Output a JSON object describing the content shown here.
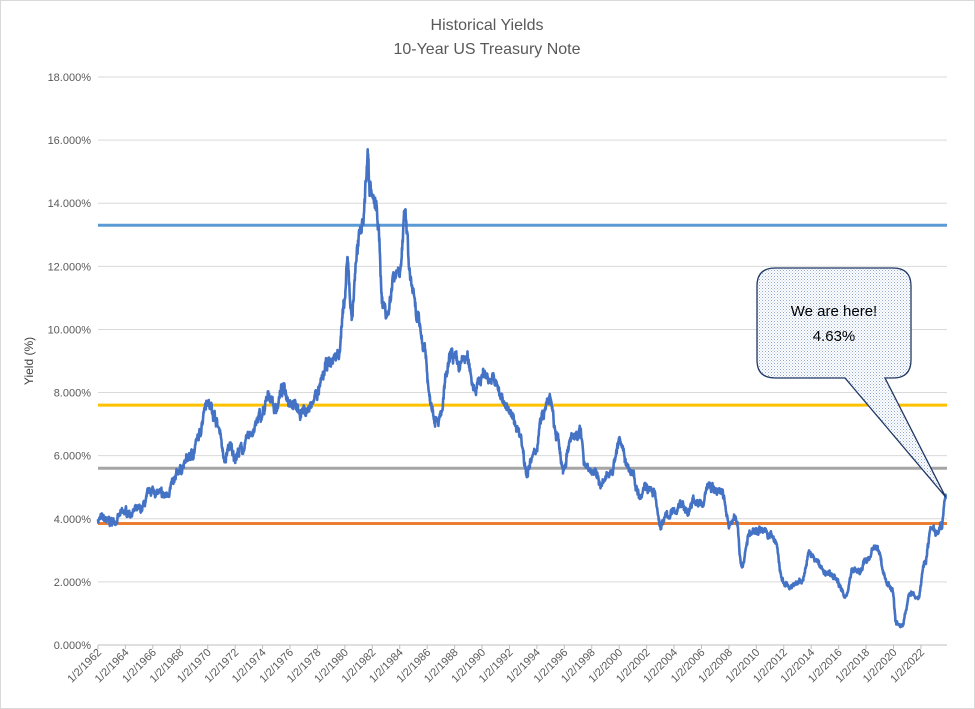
{
  "chart_data": {
    "type": "line",
    "title": "Historical Yields",
    "subtitle": "10-Year US Treasury Note",
    "xlabel": "",
    "ylabel": "Yield (%)",
    "ylim": [
      0,
      18
    ],
    "yticks": [
      "0.000%",
      "2.000%",
      "4.000%",
      "6.000%",
      "8.000%",
      "10.000%",
      "12.000%",
      "14.000%",
      "16.000%",
      "18.000%"
    ],
    "xlim": [
      1962.0,
      2023.9
    ],
    "xticks": [
      "1/2/1962",
      "1/2/1964",
      "1/2/1966",
      "1/2/1968",
      "1/2/1970",
      "1/2/1972",
      "1/2/1974",
      "1/2/1976",
      "1/2/1978",
      "1/2/1980",
      "1/2/1982",
      "1/2/1984",
      "1/2/1986",
      "1/2/1988",
      "1/2/1990",
      "1/2/1992",
      "1/2/1994",
      "1/2/1996",
      "1/2/1998",
      "1/2/2000",
      "1/2/2002",
      "1/2/2004",
      "1/2/2006",
      "1/2/2008",
      "1/2/2010",
      "1/2/2012",
      "1/2/2014",
      "1/2/2016",
      "1/2/2018",
      "1/2/2020",
      "1/2/2022"
    ],
    "grid": true,
    "legend": "none",
    "series": [
      {
        "color": "#4472c4",
        "x": [
          1962.0,
          1963.0,
          1964.0,
          1965.0,
          1966.0,
          1966.8,
          1967.5,
          1968.0,
          1968.8,
          1969.3,
          1969.9,
          1970.3,
          1970.9,
          1971.2,
          1971.6,
          1971.9,
          1972.5,
          1973.3,
          1973.8,
          1974.6,
          1974.9,
          1975.5,
          1976.0,
          1976.8,
          1977.5,
          1978.0,
          1978.8,
          1979.5,
          1979.9,
          1980.2,
          1980.5,
          1980.9,
          1981.3,
          1981.7,
          1981.8,
          1982.3,
          1982.8,
          1983.1,
          1983.6,
          1984.0,
          1984.4,
          1984.8,
          1985.3,
          1985.8,
          1986.2,
          1986.6,
          1987.0,
          1987.4,
          1987.8,
          1988.3,
          1988.8,
          1989.5,
          1990.2,
          1990.8,
          1991.5,
          1992.2,
          1992.7,
          1993.3,
          1993.8,
          1994.4,
          1994.9,
          1995.5,
          1995.9,
          1996.5,
          1997.1,
          1997.5,
          1998.0,
          1998.8,
          1999.5,
          2000.0,
          2000.4,
          2000.9,
          2001.5,
          2001.9,
          2002.5,
          2003.0,
          2003.5,
          2004.0,
          2004.5,
          2005.0,
          2005.5,
          2006.0,
          2006.5,
          2006.9,
          2007.5,
          2008.0,
          2008.5,
          2008.95,
          2009.5,
          2010.3,
          2010.9,
          2011.4,
          2011.9,
          2012.5,
          2013.3,
          2013.9,
          2014.5,
          2015.0,
          2015.5,
          2016.0,
          2016.5,
          2017.0,
          2017.5,
          2018.0,
          2018.8,
          2019.5,
          2019.9,
          2020.2,
          2020.6,
          2021.2,
          2021.8,
          2022.3,
          2022.8,
          2023.2,
          2023.5,
          2023.8
        ],
        "y": [
          4.0,
          3.9,
          4.2,
          4.25,
          4.9,
          4.7,
          5.1,
          5.6,
          6.0,
          6.5,
          7.8,
          7.5,
          6.8,
          5.8,
          6.3,
          6.0,
          6.2,
          6.8,
          7.2,
          7.9,
          7.5,
          8.1,
          7.8,
          7.4,
          7.5,
          8.0,
          8.9,
          9.2,
          10.5,
          12.0,
          10.5,
          12.5,
          13.5,
          15.5,
          14.5,
          13.8,
          10.8,
          10.5,
          11.8,
          12.0,
          13.5,
          11.5,
          10.2,
          9.5,
          7.8,
          7.3,
          7.2,
          8.5,
          9.2,
          8.8,
          9.1,
          8.2,
          8.6,
          8.4,
          7.8,
          7.2,
          6.8,
          5.5,
          6.0,
          7.2,
          7.8,
          6.5,
          5.6,
          6.5,
          6.8,
          5.8,
          5.5,
          5.1,
          5.6,
          6.5,
          5.9,
          5.5,
          4.8,
          5.1,
          4.8,
          3.8,
          4.1,
          4.2,
          4.5,
          4.2,
          4.6,
          4.4,
          5.1,
          4.9,
          4.9,
          3.8,
          4.1,
          2.5,
          3.5,
          3.7,
          3.5,
          3.3,
          2.0,
          1.8,
          2.0,
          2.9,
          2.6,
          2.3,
          2.2,
          2.0,
          1.5,
          2.4,
          2.3,
          2.7,
          3.1,
          2.0,
          1.8,
          0.7,
          0.6,
          1.6,
          1.5,
          2.7,
          3.8,
          3.6,
          3.9,
          4.63
        ]
      }
    ],
    "reference_lines": [
      {
        "value": 13.3,
        "color": "#5b9bd5"
      },
      {
        "value": 7.6,
        "color": "#ffc000"
      },
      {
        "value": 5.6,
        "color": "#a5a5a5"
      },
      {
        "value": 3.85,
        "color": "#ed7d31"
      }
    ],
    "annotation": {
      "line1": "We are here!",
      "line2": "4.63%",
      "point_x": 2023.8,
      "point_y": 4.63
    }
  }
}
